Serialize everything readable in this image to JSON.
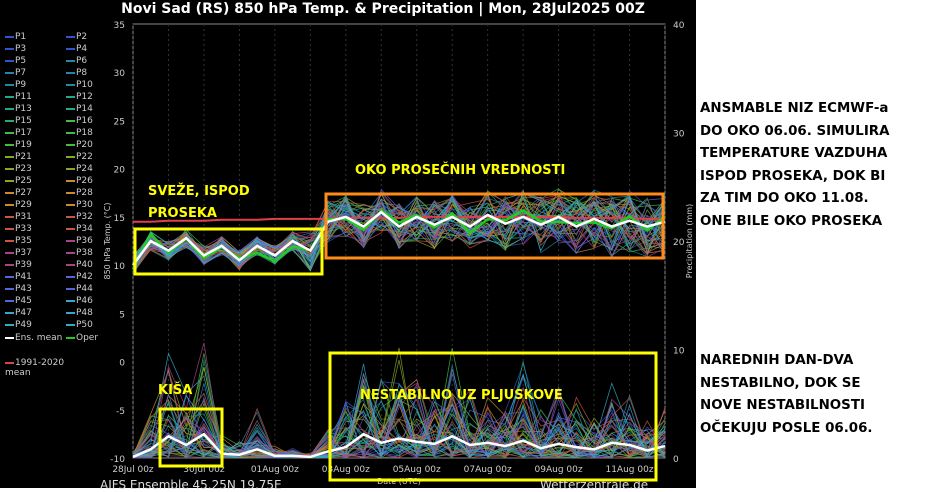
{
  "title": "Novi Sad  (RS)  850 hPa Temp. & Precipitation | Mon, 28Jul2025 00Z",
  "legend": {
    "members": [
      "P1",
      "P2",
      "P3",
      "P4",
      "P5",
      "P6",
      "P7",
      "P8",
      "P9",
      "P10",
      "P11",
      "P12",
      "P13",
      "P14",
      "P15",
      "P16",
      "P17",
      "P18",
      "P19",
      "P20",
      "P21",
      "P22",
      "P23",
      "P24",
      "P25",
      "P26",
      "P27",
      "P28",
      "P29",
      "P30",
      "P31",
      "P32",
      "P33",
      "P34",
      "P35",
      "P36",
      "P37",
      "P38",
      "P39",
      "P40",
      "P41",
      "P42",
      "P43",
      "P44",
      "P45",
      "P46",
      "P47",
      "P48",
      "P49",
      "P50"
    ],
    "ens_mean": "Ens. mean",
    "oper": "Oper",
    "clim": "1991-2020 mean"
  },
  "footer": {
    "left": "AIFS Ensemble  45.25N  19.75E",
    "right": "Wetterzentrale.de"
  },
  "colors": {
    "ens_mean": "#ffffff",
    "oper": "#22cc22",
    "clim": "#e0404a",
    "annotation": "#ffff00",
    "annotation_alt": "#ff8c1a"
  },
  "chart_data": {
    "type": "line",
    "title": "Novi Sad  (RS)  850 hPa Temp. & Precipitation | Mon, 28Jul2025 00Z",
    "xlabel": "Date (UTC)",
    "ylabel": "850 hPa Temp. (°C)",
    "y2label": "Precipitation (mm)",
    "ylim": [
      -10,
      35
    ],
    "y2lim": [
      0,
      40
    ],
    "yticks": [
      "35",
      "30",
      "25",
      "20",
      "15",
      "10",
      "5",
      "0",
      "-5",
      "-10"
    ],
    "y2ticks": [
      "40",
      "30",
      "20",
      "10",
      "0"
    ],
    "xticks": [
      "28Jul 00z",
      "30Jul 00z",
      "01Aug 00z",
      "03Aug 00z",
      "05Aug 00z",
      "07Aug 00z",
      "09Aug 00z",
      "11Aug 00z"
    ],
    "x_days": [
      0,
      0.5,
      1,
      1.5,
      2,
      2.5,
      3,
      3.5,
      4,
      4.5,
      5,
      5.5,
      6,
      6.5,
      7,
      7.5,
      8,
      8.5,
      9,
      9.5,
      10,
      10.5,
      11,
      11.5,
      12,
      12.5,
      13,
      13.5,
      14,
      14.5,
      15
    ],
    "series": [
      {
        "name": "Ens. mean",
        "axis": "temp",
        "values": [
          10,
          12.5,
          11.5,
          12.8,
          11,
          12,
          10.5,
          12,
          11,
          12.5,
          11.5,
          14.5,
          15,
          14,
          15.5,
          14,
          15,
          14.2,
          15,
          14,
          15.2,
          14.3,
          15,
          14.2,
          15,
          14,
          14.8,
          14,
          14.6,
          14,
          14.5
        ]
      },
      {
        "name": "1991-2020 mean",
        "axis": "temp",
        "values": [
          14.5,
          14.5,
          14.6,
          14.6,
          14.6,
          14.7,
          14.7,
          14.7,
          14.8,
          14.8,
          14.8,
          14.8,
          14.9,
          14.9,
          14.9,
          14.9,
          15,
          15,
          15,
          15,
          15,
          15,
          15,
          15,
          15,
          14.9,
          14.9,
          14.9,
          14.9,
          14.8,
          14.8
        ]
      },
      {
        "name": "Ens. mean precipitation",
        "axis": "precip",
        "values": [
          0.1,
          0.8,
          2,
          1.2,
          2.2,
          0.4,
          0.3,
          0.8,
          0.2,
          0.2,
          0.1,
          0.6,
          1,
          2.2,
          1.4,
          1.8,
          1.5,
          1.3,
          2,
          1.2,
          1.4,
          1.1,
          1.6,
          0.9,
          1.3,
          1.0,
          0.8,
          1.4,
          1.2,
          0.7,
          1.1
        ]
      }
    ]
  },
  "annotations": {
    "cool": [
      "SVEŽE, ISPOD",
      "PROSEKA"
    ],
    "avg": "OKO PROSEČNIH VREDNOSTI",
    "rain": "KIŠA",
    "unstable": "NESTABILNO UZ PLJUSKOVE"
  },
  "notes": {
    "top": "ANSMABLE NIZ ECMWF-a\nDO OKO 06.06. SIMULIRA\nTEMPERATURE VAZDUHA\nISPOD PROSEKA, DOK BI\nZA TIM DO OKO 11.08.\nONE BILE OKO PROSEKA",
    "bottom": "NAREDNIH DAN-DVA\nNESTABILNO, DOK SE\nNOVE NESTABILNOSTI\nOČEKUJU POSLE 06.06."
  }
}
